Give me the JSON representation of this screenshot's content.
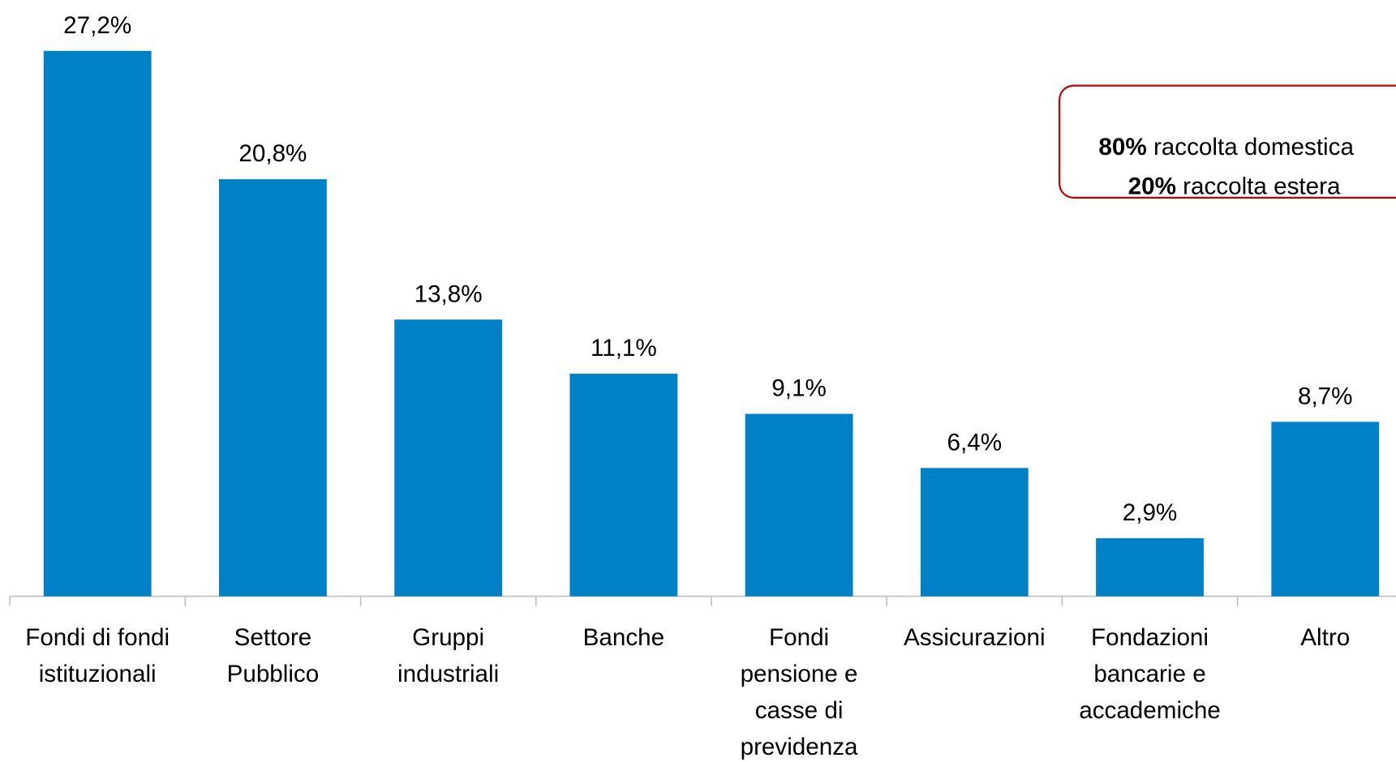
{
  "chart_data": {
    "type": "bar",
    "categories": [
      "Fondi di fondi\nistituzionali",
      "Settore\nPubblico",
      "Gruppi\nindustriali",
      "Banche",
      "Fondi\npensione e\ncasse di\nprevidenza",
      "Assicurazioni",
      "Fondazioni\nbancarie e\naccademiche",
      "Altro"
    ],
    "values": [
      27.2,
      20.8,
      13.8,
      11.1,
      9.1,
      6.4,
      2.9,
      8.7
    ],
    "value_labels": [
      "27,2%",
      "20,8%",
      "13,8%",
      "11,1%",
      "9,1%",
      "6,4%",
      "2,9%",
      "8,7%"
    ],
    "color": "#0080c6",
    "ylim": [
      0,
      30
    ],
    "annotations": [
      {
        "value": "80%",
        "text": "raccolta domestica"
      },
      {
        "value": "20%",
        "text": "raccolta estera"
      }
    ]
  }
}
